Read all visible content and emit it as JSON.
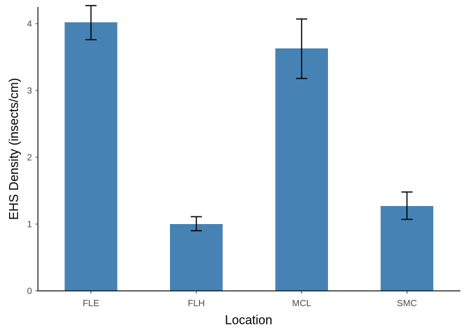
{
  "chart_data": {
    "type": "bar",
    "categories": [
      "FLE",
      "FLH",
      "MCL",
      "SMC"
    ],
    "values": [
      4.02,
      1.0,
      3.63,
      1.27
    ],
    "error_low": [
      3.76,
      0.9,
      3.18,
      1.07
    ],
    "error_high": [
      4.27,
      1.11,
      4.07,
      1.48
    ],
    "xlabel": "Location",
    "ylabel": "EHS Density (insects/cm)",
    "ylim": [
      0,
      4.25
    ],
    "yticks": [
      0,
      1,
      2,
      3,
      4
    ],
    "bar_color": "#4682b4",
    "error_color": "#000000",
    "grid": false
  }
}
